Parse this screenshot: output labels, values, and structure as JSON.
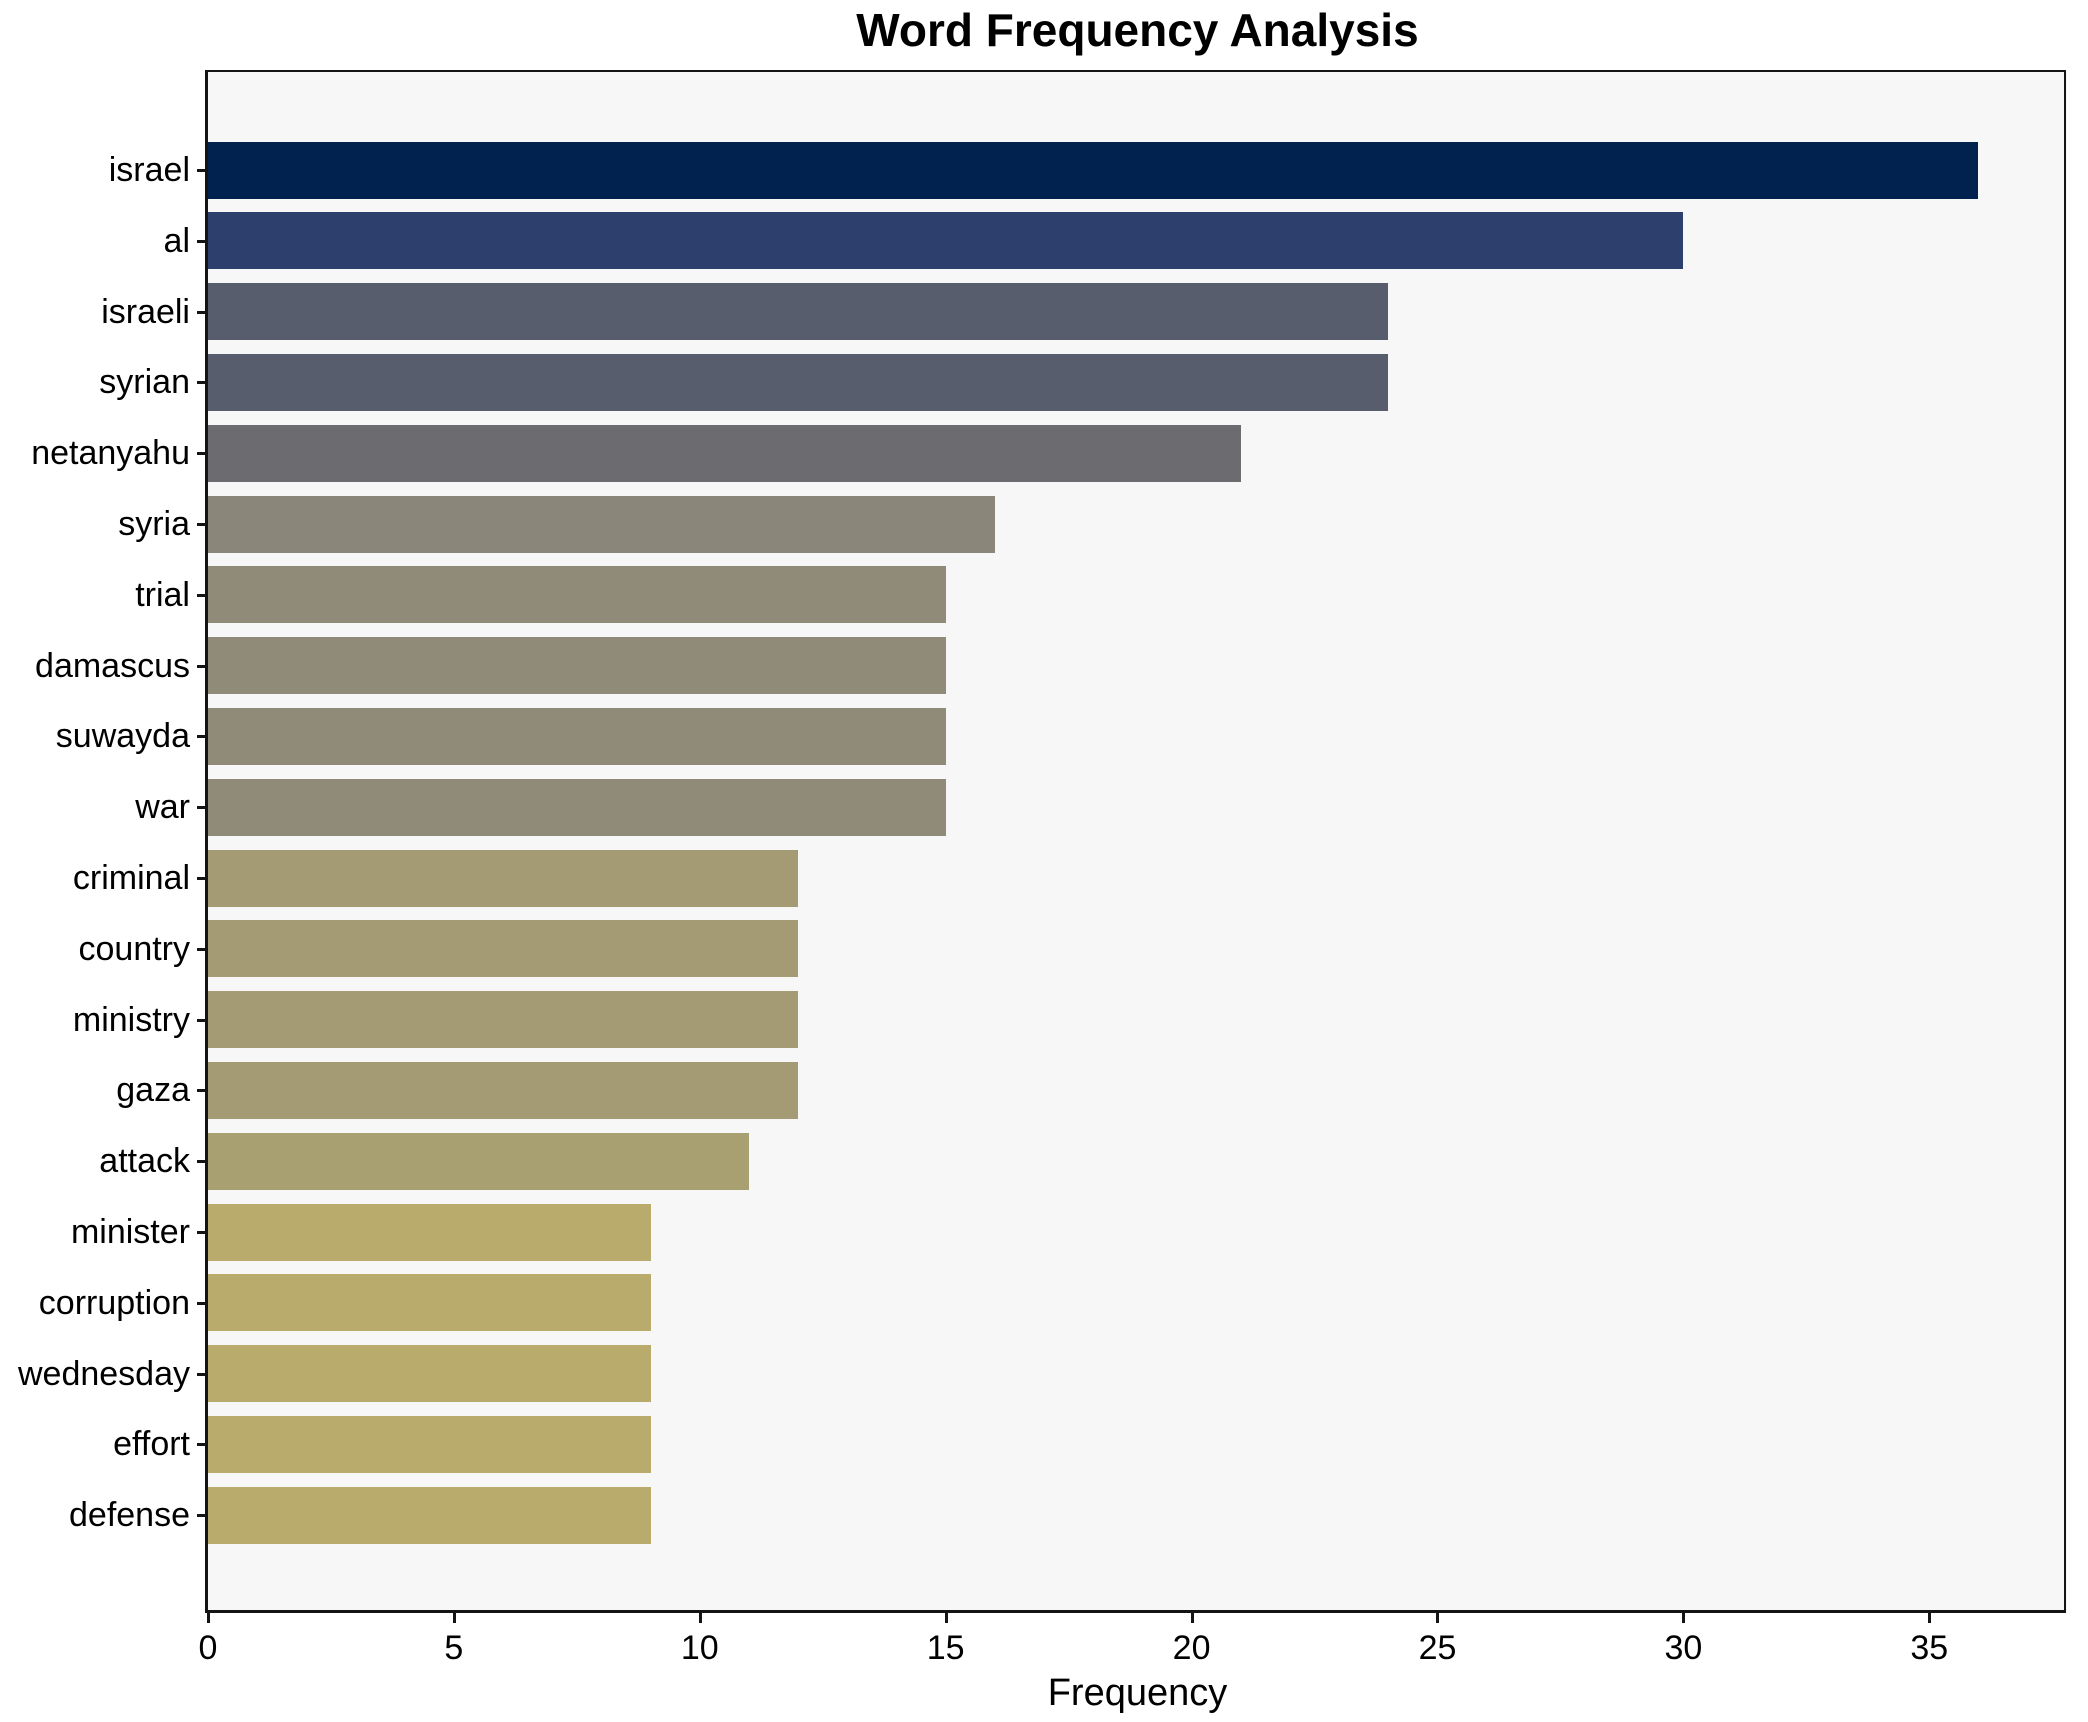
{
  "chart_data": {
    "type": "bar",
    "orientation": "horizontal",
    "title": "Word Frequency Analysis",
    "xlabel": "Frequency",
    "ylabel": "",
    "categories": [
      "israel",
      "al",
      "israeli",
      "syrian",
      "netanyahu",
      "syria",
      "trial",
      "damascus",
      "suwayda",
      "war",
      "criminal",
      "country",
      "ministry",
      "gaza",
      "attack",
      "minister",
      "corruption",
      "wednesday",
      "effort",
      "defense"
    ],
    "values": [
      36,
      30,
      24,
      24,
      21,
      16,
      15,
      15,
      15,
      15,
      12,
      12,
      12,
      12,
      11,
      9,
      9,
      9,
      9,
      9
    ],
    "bar_colors": [
      "#01224e",
      "#2d3f6c",
      "#575d6d",
      "#575d6d",
      "#6b6b70",
      "#8a867a",
      "#908b79",
      "#908b79",
      "#908b79",
      "#908b79",
      "#a49b74",
      "#a49b74",
      "#a49b74",
      "#a49b74",
      "#a9a072",
      "#b8ab6b",
      "#b8ab6b",
      "#b8ab6b",
      "#b8ab6b",
      "#b8ab6b"
    ],
    "xticks": [
      0,
      5,
      10,
      15,
      20,
      25,
      30,
      35
    ],
    "xlim": [
      0,
      37.8
    ],
    "grid": false,
    "legend": "none",
    "plot_background": "#f7f7f8",
    "figure_background": "#ffffff",
    "spine_color": "#141414",
    "text_color": "#000000"
  }
}
